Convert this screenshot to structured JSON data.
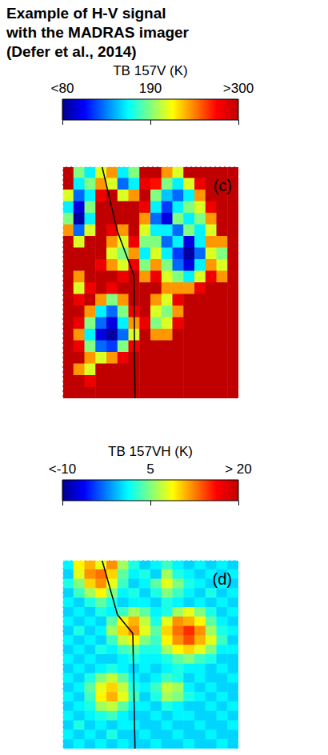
{
  "title": "Example of H-V signal\nwith the MADRAS imager\n(Defer et al., 2014)",
  "chart_data": [
    {
      "type": "heatmap",
      "panel": "(c)",
      "colorbar": {
        "label": "TB 157V (K)",
        "range": [
          80,
          300
        ],
        "ticks": [
          {
            "value": 80,
            "label": "<80"
          },
          190,
          {
            "value": 300,
            "label": ">300"
          }
        ]
      },
      "xlim": [
        0,
        16
      ],
      "ylim": [
        0,
        20
      ],
      "tick_labels": false,
      "cells": [
        [
          300,
          190,
          160,
          210,
          240,
          160,
          190,
          300,
          300,
          240,
          210,
          300,
          300,
          300,
          300,
          300
        ],
        [
          300,
          160,
          190,
          240,
          210,
          130,
          160,
          280,
          270,
          190,
          160,
          210,
          280,
          300,
          300,
          300
        ],
        [
          210,
          130,
          160,
          280,
          300,
          210,
          240,
          300,
          190,
          150,
          130,
          160,
          240,
          300,
          300,
          300
        ],
        [
          160,
          100,
          190,
          300,
          300,
          300,
          300,
          280,
          160,
          120,
          160,
          190,
          210,
          280,
          300,
          300
        ],
        [
          190,
          85,
          160,
          300,
          300,
          300,
          300,
          240,
          130,
          100,
          190,
          160,
          190,
          240,
          300,
          300
        ],
        [
          240,
          130,
          210,
          300,
          280,
          240,
          300,
          210,
          160,
          160,
          130,
          190,
          160,
          210,
          300,
          300
        ],
        [
          300,
          210,
          300,
          300,
          240,
          210,
          280,
          190,
          190,
          130,
          160,
          100,
          160,
          240,
          240,
          300
        ],
        [
          300,
          300,
          300,
          300,
          210,
          190,
          240,
          160,
          210,
          160,
          120,
          85,
          130,
          210,
          190,
          300
        ],
        [
          300,
          300,
          300,
          280,
          240,
          210,
          280,
          190,
          240,
          190,
          130,
          100,
          160,
          240,
          210,
          300
        ],
        [
          300,
          240,
          300,
          300,
          300,
          280,
          300,
          240,
          280,
          210,
          190,
          160,
          210,
          280,
          240,
          300
        ],
        [
          300,
          210,
          280,
          300,
          280,
          300,
          300,
          300,
          300,
          240,
          240,
          240,
          280,
          300,
          300,
          300
        ],
        [
          300,
          280,
          300,
          240,
          190,
          240,
          300,
          300,
          240,
          210,
          280,
          300,
          300,
          300,
          300,
          300
        ],
        [
          300,
          300,
          240,
          160,
          130,
          190,
          280,
          300,
          210,
          190,
          240,
          300,
          300,
          300,
          300,
          300
        ],
        [
          300,
          280,
          190,
          130,
          100,
          160,
          240,
          280,
          190,
          210,
          280,
          300,
          300,
          300,
          300,
          300
        ],
        [
          300,
          240,
          160,
          100,
          85,
          130,
          210,
          300,
          240,
          240,
          300,
          300,
          300,
          300,
          300,
          300
        ],
        [
          300,
          280,
          190,
          130,
          120,
          190,
          280,
          300,
          300,
          300,
          300,
          300,
          300,
          300,
          300,
          300
        ],
        [
          300,
          300,
          240,
          210,
          240,
          280,
          300,
          300,
          300,
          300,
          300,
          300,
          300,
          300,
          300,
          300
        ],
        [
          300,
          240,
          210,
          300,
          300,
          300,
          300,
          300,
          300,
          300,
          300,
          300,
          300,
          300,
          300,
          300
        ],
        [
          300,
          300,
          280,
          300,
          300,
          300,
          300,
          300,
          300,
          300,
          300,
          300,
          300,
          300,
          300,
          300
        ],
        [
          300,
          300,
          300,
          300,
          300,
          300,
          300,
          300,
          300,
          300,
          300,
          300,
          300,
          300,
          300,
          300
        ]
      ],
      "boundary": {
        "x": [
          3.6,
          5.0,
          6.5,
          6.6
        ],
        "y": [
          0,
          5.6,
          9.4,
          20
        ],
        "color": "#000000"
      }
    },
    {
      "type": "heatmap",
      "panel": "(d)",
      "colorbar": {
        "label": "TB 157VH (K)",
        "range": [
          -10,
          20
        ],
        "ticks": [
          {
            "value": -10,
            "label": "<-10"
          },
          5,
          {
            "value": 20,
            "label": "> 20"
          }
        ]
      },
      "xlim": [
        0,
        16
      ],
      "ylim": [
        0,
        20
      ],
      "tick_labels": false,
      "cells": [
        [
          1,
          9,
          11,
          8,
          12,
          6,
          2,
          0,
          1,
          3,
          1,
          0,
          1,
          0,
          1,
          0
        ],
        [
          0,
          8,
          12,
          13,
          10,
          4,
          1,
          2,
          0,
          6,
          2,
          1,
          0,
          1,
          0,
          1
        ],
        [
          2,
          5,
          10,
          12,
          8,
          3,
          0,
          1,
          4,
          8,
          5,
          2,
          1,
          0,
          1,
          0
        ],
        [
          0,
          3,
          6,
          9,
          5,
          1,
          2,
          0,
          2,
          5,
          3,
          1,
          0,
          2,
          0,
          1
        ],
        [
          1,
          0,
          2,
          4,
          2,
          0,
          1,
          1,
          0,
          2,
          1,
          0,
          1,
          0,
          1,
          0
        ],
        [
          0,
          1,
          0,
          2,
          1,
          3,
          6,
          4,
          1,
          2,
          6,
          8,
          5,
          2,
          0,
          1
        ],
        [
          1,
          0,
          1,
          0,
          4,
          9,
          11,
          7,
          2,
          8,
          12,
          11,
          9,
          4,
          1,
          0
        ],
        [
          0,
          2,
          0,
          1,
          6,
          10,
          12,
          8,
          4,
          10,
          13,
          15,
          12,
          6,
          2,
          1
        ],
        [
          1,
          0,
          1,
          0,
          3,
          7,
          9,
          5,
          3,
          9,
          12,
          14,
          11,
          8,
          3,
          0
        ],
        [
          0,
          1,
          0,
          2,
          1,
          3,
          4,
          2,
          2,
          6,
          9,
          10,
          8,
          5,
          1,
          1
        ],
        [
          1,
          0,
          1,
          0,
          0,
          1,
          2,
          1,
          1,
          2,
          4,
          5,
          3,
          2,
          0,
          0
        ],
        [
          0,
          1,
          0,
          1,
          2,
          1,
          0,
          1,
          0,
          1,
          2,
          1,
          1,
          0,
          1,
          0
        ],
        [
          1,
          0,
          2,
          5,
          7,
          4,
          1,
          0,
          1,
          3,
          2,
          0,
          1,
          0,
          0,
          1
        ],
        [
          0,
          1,
          4,
          8,
          10,
          7,
          2,
          1,
          3,
          7,
          6,
          1,
          0,
          1,
          0,
          0
        ],
        [
          1,
          0,
          3,
          9,
          11,
          8,
          3,
          0,
          2,
          6,
          5,
          2,
          1,
          0,
          1,
          0
        ],
        [
          0,
          1,
          2,
          6,
          7,
          4,
          1,
          1,
          0,
          2,
          1,
          0,
          0,
          1,
          0,
          1
        ],
        [
          1,
          0,
          1,
          2,
          3,
          1,
          0,
          0,
          1,
          0,
          1,
          1,
          0,
          0,
          1,
          0
        ],
        [
          0,
          2,
          0,
          1,
          0,
          1,
          1,
          0,
          0,
          1,
          0,
          0,
          1,
          0,
          0,
          1
        ],
        [
          1,
          0,
          1,
          0,
          2,
          0,
          0,
          1,
          0,
          0,
          1,
          0,
          0,
          1,
          0,
          0
        ],
        [
          0,
          1,
          0,
          1,
          0,
          1,
          0,
          0,
          1,
          0,
          0,
          1,
          0,
          0,
          1,
          0
        ]
      ],
      "boundary": {
        "x": [
          3.6,
          5.0,
          6.4,
          6.6
        ],
        "y": [
          0,
          5.8,
          7.8,
          20
        ],
        "color": "#000000"
      }
    }
  ]
}
